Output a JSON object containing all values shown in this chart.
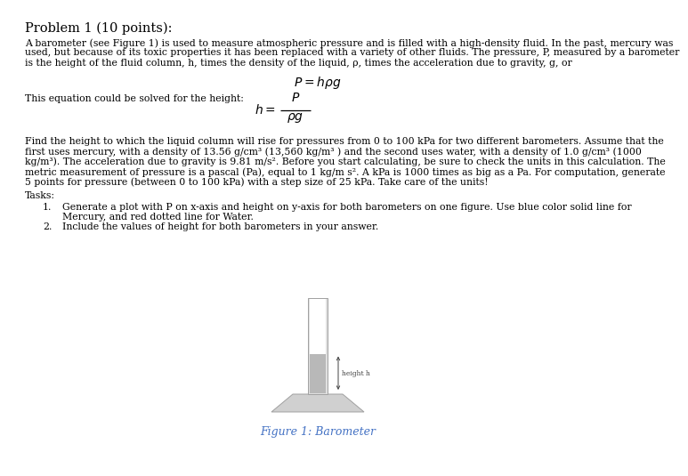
{
  "title": "Problem 1 (10 points):",
  "paragraph1_lines": [
    "A barometer (see Figure 1) is used to measure atmospheric pressure and is filled with a high-density fluid. In the past, mercury was",
    "used, but because of its toxic properties it has been replaced with a variety of other fluids. The pressure, P, measured by a barometer",
    "is the height of the fluid column, h, times the density of the liquid, ρ, times the acceleration due to gravity, g, or"
  ],
  "eq1": "$P = h\\rho g$",
  "transition": "This equation could be solved for the height:",
  "paragraph2_lines": [
    "Find the height to which the liquid column will rise for pressures from 0 to 100 kPa for two different barometers. Assume that the",
    "first uses mercury, with a density of 13.56 g/cm³ (13,560 kg/m³ ) and the second uses water, with a density of 1.0 g/cm³ (1000",
    "kg/m³). The acceleration due to gravity is 9.81 m/s². Before you start calculating, be sure to check the units in this calculation. The",
    "metric measurement of pressure is a pascal (Pa), equal to 1 kg/m s². A kPa is 1000 times as big as a Pa. For computation, generate",
    "5 points for pressure (between 0 to 100 kPa) with a step size of 25 kPa. Take care of the units!"
  ],
  "tasks_label": "Tasks:",
  "task1_line1": "Generate a plot with P on x-axis and height on y-axis for both barometers on one figure. Use blue color solid line for",
  "task1_line2": "Mercury, and red dotted line for Water.",
  "task2": "Include the values of height for both barometers in your answer.",
  "figure_caption": "Figure 1: Barometer",
  "background_color": "#ffffff",
  "text_color": "#000000",
  "caption_color": "#4472C4",
  "title_fontsize": 10.5,
  "body_fontsize": 7.8,
  "eq_fontsize": 10
}
